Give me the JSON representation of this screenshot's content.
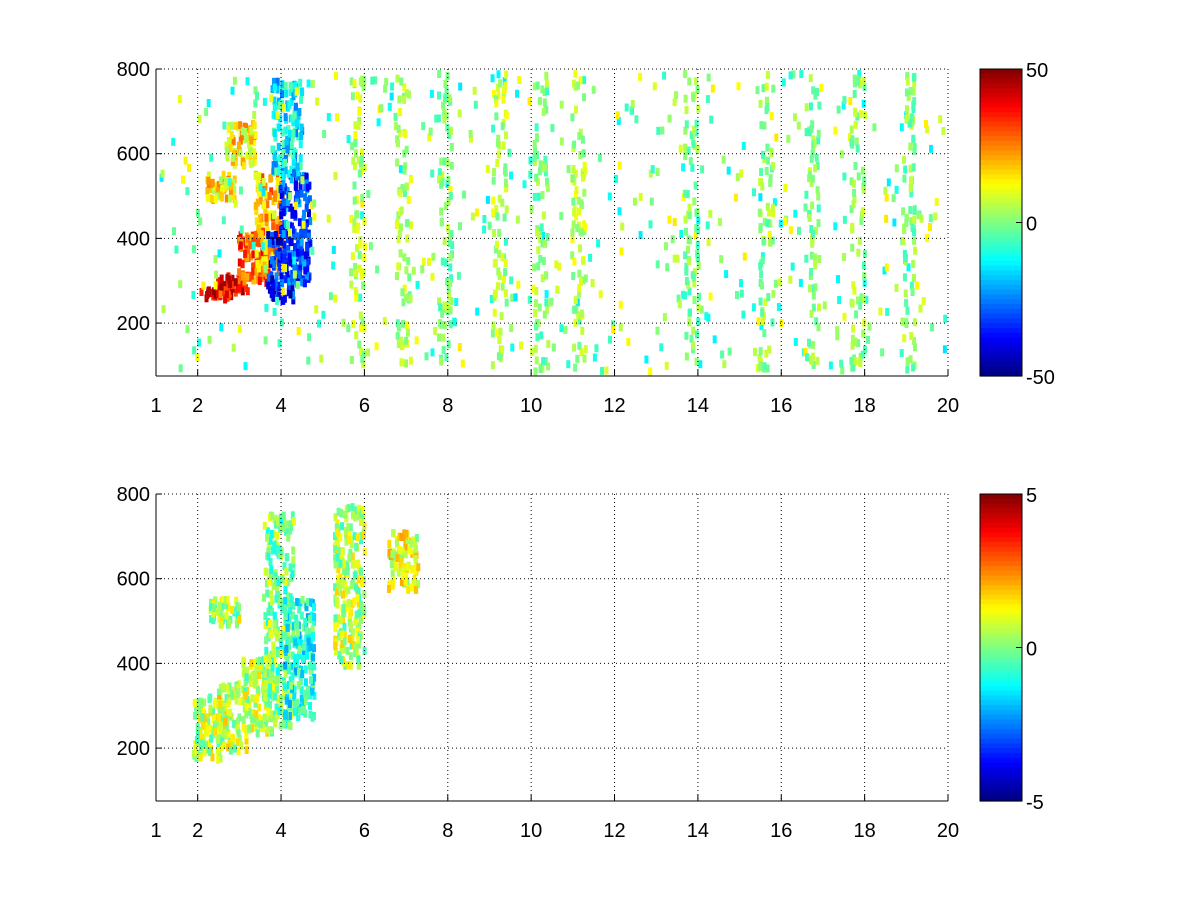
{
  "chart_data": [
    {
      "type": "heatmap",
      "title": "",
      "xlabel": "",
      "ylabel": "",
      "xlim": [
        1,
        20
      ],
      "ylim": [
        75,
        800
      ],
      "grid": true,
      "x_ticks": [
        1,
        2,
        4,
        6,
        8,
        10,
        12,
        14,
        16,
        18,
        20
      ],
      "y_ticks": [
        200,
        400,
        600,
        800
      ],
      "colormap": "jet",
      "clim": [
        -50,
        50
      ],
      "colorbar_ticks": [
        -50,
        0,
        50
      ],
      "features": [
        {
          "x": 2.4,
          "y_start": 265,
          "y_end": 290,
          "value": 40
        },
        {
          "x": 2.8,
          "y_start": 275,
          "y_end": 320,
          "value": 35
        },
        {
          "x": 3.3,
          "y_start": 300,
          "y_end": 420,
          "value": 30
        },
        {
          "x": 3.7,
          "y_start": 320,
          "y_end": 560,
          "value": 20
        },
        {
          "x": 2.5,
          "y_start": 500,
          "y_end": 560,
          "value": 15
        },
        {
          "x": 3.0,
          "y_start": 580,
          "y_end": 680,
          "value": 15
        },
        {
          "x": 4.0,
          "y_start": 260,
          "y_end": 420,
          "value": -35
        },
        {
          "x": 4.3,
          "y_start": 300,
          "y_end": 560,
          "value": -30
        },
        {
          "x": 4.1,
          "y_start": 560,
          "y_end": 780,
          "value": -15
        }
      ],
      "columns": [
        {
          "x": 5.8,
          "value": 5
        },
        {
          "x": 6.9,
          "value": 5
        },
        {
          "x": 7.9,
          "value": 0
        },
        {
          "x": 9.2,
          "value": 5
        },
        {
          "x": 10.2,
          "value": 0
        },
        {
          "x": 11.1,
          "value": 5
        },
        {
          "x": 13.8,
          "value": 0
        },
        {
          "x": 15.6,
          "value": 2
        },
        {
          "x": 16.7,
          "value": 0
        },
        {
          "x": 17.8,
          "value": 2
        },
        {
          "x": 19.0,
          "value": 0
        }
      ]
    },
    {
      "type": "heatmap",
      "title": "",
      "xlabel": "",
      "ylabel": "",
      "xlim": [
        1,
        20
      ],
      "ylim": [
        75,
        800
      ],
      "grid": true,
      "x_ticks": [
        1,
        2,
        4,
        6,
        8,
        10,
        12,
        14,
        16,
        18,
        20
      ],
      "y_ticks": [
        200,
        400,
        600,
        800
      ],
      "colormap": "jet",
      "clim": [
        -5,
        5
      ],
      "colorbar_ticks": [
        -5,
        0,
        5
      ],
      "features": [
        {
          "x": 2.2,
          "y_start": 180,
          "y_end": 330,
          "value": 0.5
        },
        {
          "x": 2.8,
          "y_start": 200,
          "y_end": 360,
          "value": 0.8
        },
        {
          "x": 3.4,
          "y_start": 240,
          "y_end": 420,
          "value": 0.5
        },
        {
          "x": 3.9,
          "y_start": 260,
          "y_end": 760,
          "value": 0
        },
        {
          "x": 4.4,
          "y_start": 280,
          "y_end": 560,
          "value": -1
        },
        {
          "x": 2.6,
          "y_start": 500,
          "y_end": 560,
          "value": 0.5
        },
        {
          "x": 5.6,
          "y_start": 400,
          "y_end": 780,
          "value": 0.5
        },
        {
          "x": 6.9,
          "y_start": 580,
          "y_end": 720,
          "value": 1
        }
      ],
      "columns": []
    }
  ]
}
